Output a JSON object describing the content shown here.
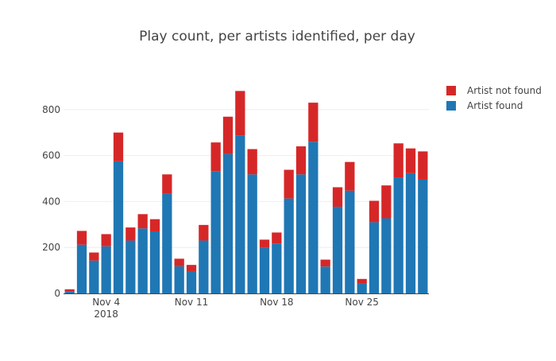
{
  "chart_data": {
    "type": "bar",
    "stacked": true,
    "title": "Play count, per artists identified, per day",
    "xlabel": "",
    "ylabel": "",
    "ylim": [
      0,
      1000
    ],
    "y_ticks": [
      0,
      200,
      400,
      600,
      800
    ],
    "x_ticks": [
      {
        "date": "2018-11-04",
        "label": "Nov 4",
        "sublabel": "2018"
      },
      {
        "date": "2018-11-11",
        "label": "Nov 11",
        "sublabel": ""
      },
      {
        "date": "2018-11-18",
        "label": "Nov 18",
        "sublabel": ""
      },
      {
        "date": "2018-11-25",
        "label": "Nov 25",
        "sublabel": ""
      }
    ],
    "categories": [
      "2018-11-01",
      "2018-11-02",
      "2018-11-03",
      "2018-11-04",
      "2018-11-05",
      "2018-11-06",
      "2018-11-07",
      "2018-11-08",
      "2018-11-09",
      "2018-11-10",
      "2018-11-11",
      "2018-11-12",
      "2018-11-13",
      "2018-11-14",
      "2018-11-15",
      "2018-11-16",
      "2018-11-17",
      "2018-11-18",
      "2018-11-19",
      "2018-11-20",
      "2018-11-21",
      "2018-11-22",
      "2018-11-23",
      "2018-11-24",
      "2018-11-25",
      "2018-11-26",
      "2018-11-27",
      "2018-11-28",
      "2018-11-29",
      "2018-11-30"
    ],
    "series": [
      {
        "name": "Artist found",
        "color": "#1f77b4",
        "values": [
          10,
          212,
          143,
          205,
          575,
          230,
          283,
          270,
          433,
          118,
          97,
          230,
          532,
          607,
          688,
          518,
          198,
          217,
          413,
          518,
          660,
          117,
          377,
          447,
          43,
          310,
          327,
          505,
          523,
          495
        ]
      },
      {
        "name": "Artist not found",
        "color": "#d62728",
        "values": [
          8,
          60,
          35,
          53,
          125,
          57,
          62,
          53,
          85,
          33,
          27,
          68,
          125,
          162,
          193,
          110,
          36,
          48,
          125,
          122,
          170,
          30,
          85,
          125,
          20,
          93,
          143,
          148,
          108,
          123
        ]
      }
    ],
    "legend": {
      "placement": "top-right",
      "items": [
        "Artist not found",
        "Artist found"
      ]
    },
    "grid": {
      "x": false,
      "y": true
    }
  }
}
